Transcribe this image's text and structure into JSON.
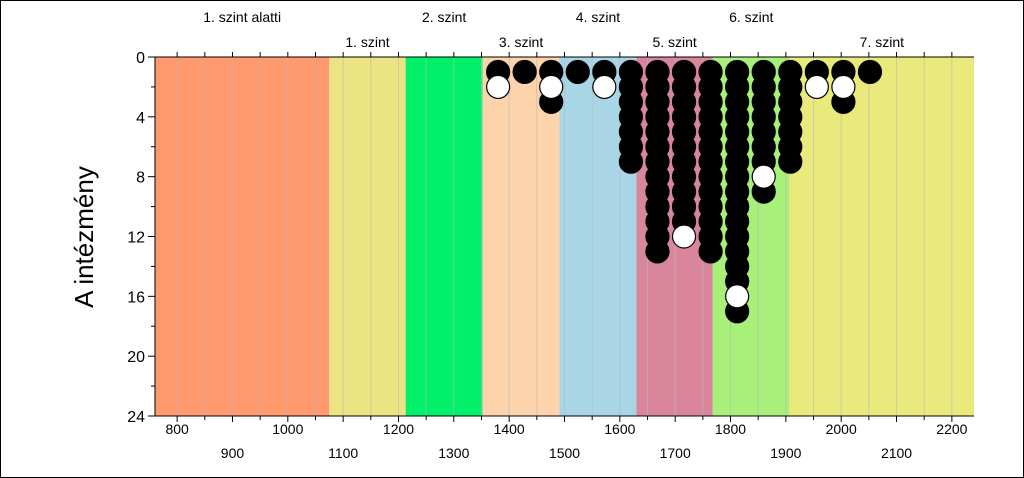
{
  "chart_data": {
    "type": "scatter",
    "title": "",
    "xlabel": "",
    "ylabel": "A intézmény",
    "xlim": [
      760,
      2240
    ],
    "ylim": [
      0,
      24
    ],
    "x_ticks_top_row": [
      800,
      1000,
      1200,
      1400,
      1600,
      1800,
      2000,
      2200
    ],
    "x_ticks_bottom_row": [
      900,
      1100,
      1300,
      1500,
      1700,
      1900,
      2100
    ],
    "y_ticks": [
      0,
      4,
      8,
      12,
      16,
      20,
      24
    ],
    "levels": [
      {
        "label": "1. szint alatti",
        "from": 760,
        "to": 1075,
        "color": "#ff9a6e",
        "label_row": "upper"
      },
      {
        "label": "1. szint",
        "from": 1075,
        "to": 1213,
        "color": "#ece383",
        "label_row": "lower"
      },
      {
        "label": "2. szint",
        "from": 1213,
        "to": 1352,
        "color": "#00f06a",
        "label_row": "upper"
      },
      {
        "label": "3. szint",
        "from": 1352,
        "to": 1491,
        "color": "#fdd3ac",
        "label_row": "lower"
      },
      {
        "label": "4. szint",
        "from": 1491,
        "to": 1630,
        "color": "#a9d6e6",
        "label_row": "upper"
      },
      {
        "label": "5. szint",
        "from": 1630,
        "to": 1768,
        "color": "#d9869c",
        "label_row": "lower"
      },
      {
        "label": "6. szint",
        "from": 1768,
        "to": 1907,
        "color": "#a8f07a",
        "label_row": "upper"
      },
      {
        "label": "7. szint",
        "from": 1907,
        "to": 2240,
        "color": "#eaea7c",
        "label_row": "lower"
      }
    ],
    "series": [
      {
        "name": "",
        "marker": "black",
        "points": [
          [
            1380,
            1
          ],
          [
            1428,
            1
          ],
          [
            1476,
            1
          ],
          [
            1476,
            3
          ],
          [
            1524,
            1
          ],
          [
            1572,
            1
          ],
          [
            1620,
            1
          ],
          [
            1620,
            2
          ],
          [
            1620,
            3
          ],
          [
            1620,
            4
          ],
          [
            1620,
            5
          ],
          [
            1620,
            6
          ],
          [
            1620,
            7
          ],
          [
            1668,
            1
          ],
          [
            1668,
            2
          ],
          [
            1668,
            3
          ],
          [
            1668,
            4
          ],
          [
            1668,
            5
          ],
          [
            1668,
            6
          ],
          [
            1668,
            7
          ],
          [
            1668,
            8
          ],
          [
            1668,
            9
          ],
          [
            1668,
            10
          ],
          [
            1668,
            11
          ],
          [
            1668,
            12
          ],
          [
            1668,
            13
          ],
          [
            1716,
            1
          ],
          [
            1716,
            2
          ],
          [
            1716,
            3
          ],
          [
            1716,
            4
          ],
          [
            1716,
            5
          ],
          [
            1716,
            6
          ],
          [
            1716,
            7
          ],
          [
            1716,
            8
          ],
          [
            1716,
            9
          ],
          [
            1716,
            10
          ],
          [
            1716,
            11
          ],
          [
            1764,
            1
          ],
          [
            1764,
            2
          ],
          [
            1764,
            3
          ],
          [
            1764,
            4
          ],
          [
            1764,
            5
          ],
          [
            1764,
            6
          ],
          [
            1764,
            7
          ],
          [
            1764,
            8
          ],
          [
            1764,
            9
          ],
          [
            1764,
            10
          ],
          [
            1764,
            11
          ],
          [
            1764,
            12
          ],
          [
            1764,
            13
          ],
          [
            1812,
            1
          ],
          [
            1812,
            2
          ],
          [
            1812,
            3
          ],
          [
            1812,
            4
          ],
          [
            1812,
            5
          ],
          [
            1812,
            6
          ],
          [
            1812,
            7
          ],
          [
            1812,
            8
          ],
          [
            1812,
            9
          ],
          [
            1812,
            10
          ],
          [
            1812,
            11
          ],
          [
            1812,
            12
          ],
          [
            1812,
            13
          ],
          [
            1812,
            14
          ],
          [
            1812,
            15
          ],
          [
            1812,
            17
          ],
          [
            1860,
            1
          ],
          [
            1860,
            2
          ],
          [
            1860,
            3
          ],
          [
            1860,
            4
          ],
          [
            1860,
            5
          ],
          [
            1860,
            6
          ],
          [
            1860,
            7
          ],
          [
            1860,
            9
          ],
          [
            1908,
            1
          ],
          [
            1908,
            2
          ],
          [
            1908,
            3
          ],
          [
            1908,
            4
          ],
          [
            1908,
            5
          ],
          [
            1908,
            6
          ],
          [
            1908,
            7
          ],
          [
            1956,
            1
          ],
          [
            2004,
            1
          ],
          [
            2004,
            3
          ],
          [
            2052,
            1
          ]
        ]
      },
      {
        "name": "",
        "marker": "white",
        "points": [
          [
            1380,
            2
          ],
          [
            1476,
            2
          ],
          [
            1572,
            2
          ],
          [
            1716,
            12
          ],
          [
            1812,
            16
          ],
          [
            1860,
            8
          ],
          [
            1956,
            2
          ],
          [
            2004,
            2
          ]
        ]
      }
    ]
  }
}
